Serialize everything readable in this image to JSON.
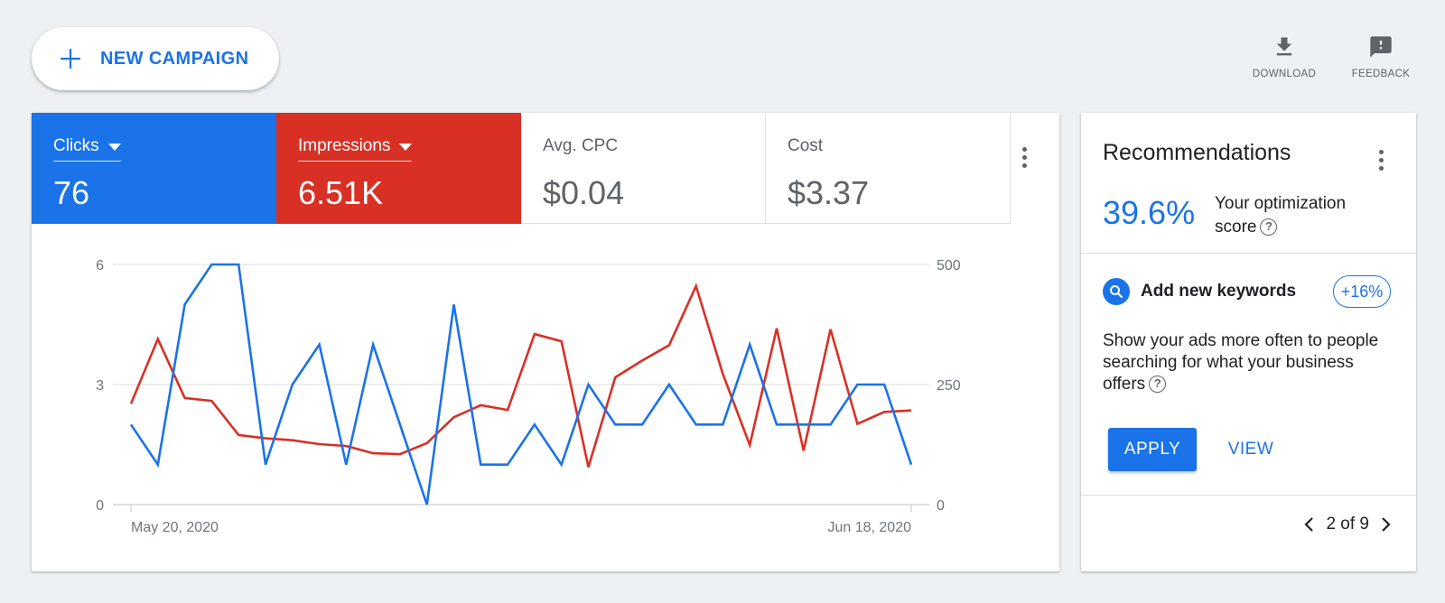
{
  "toolbar": {
    "new_campaign_label": "NEW CAMPAIGN",
    "download_label": "DOWNLOAD",
    "feedback_label": "FEEDBACK"
  },
  "metrics": [
    {
      "label": "Clicks",
      "value": "76",
      "color": "#1a73e8",
      "selected": true
    },
    {
      "label": "Impressions",
      "value": "6.51K",
      "color": "#d93025",
      "selected": true
    },
    {
      "label": "Avg. CPC",
      "value": "$0.04",
      "selected": false
    },
    {
      "label": "Cost",
      "value": "$3.37",
      "selected": false
    }
  ],
  "chart_data": {
    "type": "line",
    "x_start_label": "May 20, 2020",
    "x_end_label": "Jun 18, 2020",
    "y_left_ticks": [
      "0",
      "3",
      "6"
    ],
    "y_right_ticks": [
      "0",
      "250",
      "500"
    ],
    "ylim_left": [
      0,
      6
    ],
    "ylim_right": [
      0,
      500
    ],
    "grid": true,
    "series": [
      {
        "name": "Clicks",
        "axis": "left",
        "color": "#1a73e8",
        "values": [
          2,
          1,
          5,
          6,
          6,
          1,
          3,
          4,
          1,
          4,
          2,
          0,
          5,
          1,
          1,
          2,
          1,
          3,
          2,
          2,
          3,
          2,
          2,
          4,
          2,
          2,
          2,
          3,
          3,
          1
        ]
      },
      {
        "name": "Impressions",
        "axis": "right",
        "color": "#d93025",
        "values": [
          210,
          345,
          222,
          216,
          145,
          138,
          134,
          126,
          122,
          107,
          105,
          128,
          182,
          207,
          197,
          355,
          340,
          78,
          265,
          300,
          332,
          455,
          272,
          124,
          367,
          112,
          365,
          168,
          193,
          196
        ]
      }
    ]
  },
  "recommendations": {
    "title": "Recommendations",
    "score": "39.6%",
    "score_label": "Your optimization score",
    "item_title": "Add new keywords",
    "badge": "+16%",
    "description": "Show your ads more often to people searching for what your business offers",
    "apply_label": "APPLY",
    "view_label": "VIEW",
    "pager": "2 of 9"
  }
}
